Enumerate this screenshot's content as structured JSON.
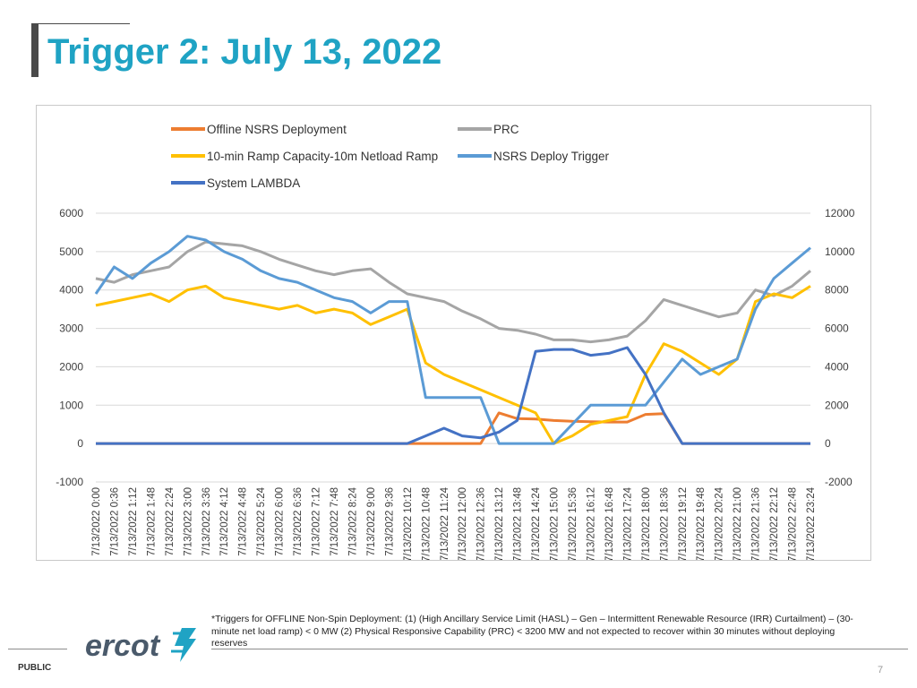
{
  "slide": {
    "title": "Trigger 2: July 13, 2022",
    "footnote": "*Triggers for OFFLINE Non-Spin Deployment: (1) (High Ancillary Service Limit (HASL) – Gen – Intermittent Renewable Resource (IRR) Curtailment) – (30-minute net load ramp) < 0 MW (2) Physical Responsive Capability (PRC) < 3200 MW and not expected to recover within 30 minutes without deploying reserves",
    "logo_text": "ercot",
    "classification": "PUBLIC",
    "page_number": "7"
  },
  "chart_data": {
    "type": "line",
    "title": "",
    "xlabel": "",
    "ylabel": "",
    "ylim": [
      -1000,
      6000
    ],
    "y2lim": [
      -2000,
      12000
    ],
    "y_ticks": [
      "6000",
      "5000",
      "4000",
      "3000",
      "2000",
      "1000",
      "0",
      "-1000"
    ],
    "y2_ticks": [
      "12000",
      "10000",
      "8000",
      "6000",
      "4000",
      "2000",
      "0",
      "-2000"
    ],
    "grid": true,
    "legend_position": "top",
    "categories": [
      "7/13/2022 0:00",
      "7/13/2022 0:36",
      "7/13/2022 1:12",
      "7/13/2022 1:48",
      "7/13/2022 2:24",
      "7/13/2022 3:00",
      "7/13/2022 3:36",
      "7/13/2022 4:12",
      "7/13/2022 4:48",
      "7/13/2022 5:24",
      "7/13/2022 6:00",
      "7/13/2022 6:36",
      "7/13/2022 7:12",
      "7/13/2022 7:48",
      "7/13/2022 8:24",
      "7/13/2022 9:00",
      "7/13/2022 9:36",
      "7/13/2022 10:12",
      "7/13/2022 10:48",
      "7/13/2022 11:24",
      "7/13/2022 12:00",
      "7/13/2022 12:36",
      "7/13/2022 13:12",
      "7/13/2022 13:48",
      "7/13/2022 14:24",
      "7/13/2022 15:00",
      "7/13/2022 15:36",
      "7/13/2022 16:12",
      "7/13/2022 16:48",
      "7/13/2022 17:24",
      "7/13/2022 18:00",
      "7/13/2022 18:36",
      "7/13/2022 19:12",
      "7/13/2022 19:48",
      "7/13/2022 20:24",
      "7/13/2022 21:00",
      "7/13/2022 21:36",
      "7/13/2022 22:12",
      "7/13/2022 22:48",
      "7/13/2022 23:24"
    ],
    "series": [
      {
        "name": "Offline NSRS Deployment",
        "color": "#ed7d31",
        "axis": "left",
        "values": [
          0,
          0,
          0,
          0,
          0,
          0,
          0,
          0,
          0,
          0,
          0,
          0,
          0,
          0,
          0,
          0,
          0,
          0,
          0,
          0,
          0,
          0,
          800,
          650,
          640,
          600,
          580,
          570,
          560,
          560,
          760,
          780,
          0,
          0,
          0,
          0,
          0,
          0,
          0,
          0
        ]
      },
      {
        "name": "PRC",
        "color": "#a5a5a5",
        "axis": "right",
        "values": [
          8600,
          8400,
          8800,
          9000,
          9200,
          10000,
          10500,
          10400,
          10300,
          10000,
          9600,
          9300,
          9000,
          8800,
          9000,
          9100,
          8400,
          7800,
          7600,
          7400,
          6900,
          6500,
          6000,
          5900,
          5700,
          5400,
          5400,
          5300,
          5400,
          5600,
          6400,
          7500,
          7200,
          6900,
          6600,
          6800,
          8000,
          7700,
          8200,
          9000
        ]
      },
      {
        "name": "10-min Ramp Capacity-10m Netload Ramp",
        "color": "#ffc000",
        "axis": "left",
        "values": [
          3600,
          3700,
          3800,
          3900,
          3700,
          4000,
          4100,
          3800,
          3700,
          3600,
          3500,
          3600,
          3400,
          3500,
          3400,
          3100,
          3300,
          3500,
          2100,
          1800,
          1600,
          1400,
          1200,
          1000,
          800,
          0,
          200,
          500,
          600,
          700,
          1800,
          2600,
          2400,
          2100,
          1800,
          2200,
          3700,
          3900,
          3800,
          4100
        ]
      },
      {
        "name": "NSRS Deploy Trigger",
        "color": "#5b9bd5",
        "axis": "left",
        "values": [
          3900,
          4600,
          4300,
          4700,
          5000,
          5400,
          5300,
          5000,
          4800,
          4500,
          4300,
          4200,
          4000,
          3800,
          3700,
          3400,
          3700,
          3700,
          1200,
          1200,
          1200,
          1200,
          0,
          0,
          0,
          0,
          500,
          1000,
          1000,
          1000,
          1000,
          1600,
          2200,
          1800,
          2000,
          2200,
          3500,
          4300,
          4700,
          5100
        ]
      },
      {
        "name": "System LAMBDA",
        "color": "#4472c4",
        "axis": "right",
        "values": [
          0,
          0,
          0,
          0,
          0,
          0,
          0,
          0,
          0,
          0,
          0,
          0,
          0,
          0,
          0,
          0,
          0,
          0,
          400,
          800,
          400,
          300,
          600,
          1200,
          4800,
          4900,
          4900,
          4600,
          4700,
          5000,
          3600,
          1600,
          0,
          0,
          0,
          0,
          0,
          0,
          0,
          0
        ]
      }
    ]
  }
}
